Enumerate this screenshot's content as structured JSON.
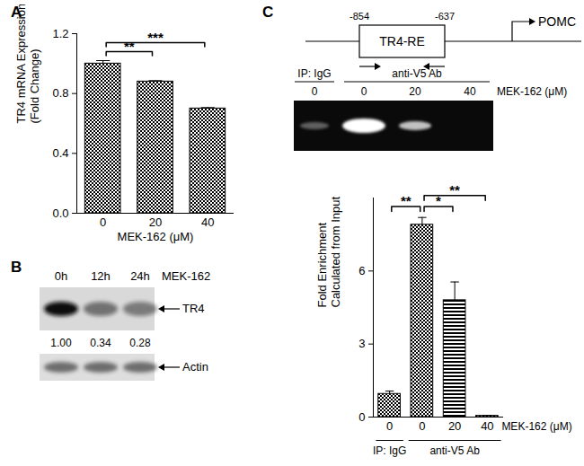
{
  "panel_labels": [
    "A",
    "B",
    "C"
  ],
  "chart_data": [
    {
      "type": "bar",
      "categories": [
        "0",
        "20",
        "40"
      ],
      "values": [
        1.0,
        0.88,
        0.7
      ],
      "errors": [
        0.02,
        0.006,
        0.006
      ],
      "color": "#000000",
      "ylabel": [
        "TR4 mRNA Expression",
        "(Fold Change)"
      ],
      "xlabel": "MEK-162 (μM)",
      "ylim": [
        0,
        1.2
      ],
      "yticks": [
        {
          "value": 0,
          "label": "0.0"
        },
        {
          "value": 0.4,
          "label": "0.4"
        },
        {
          "value": 0.8,
          "label": "0.8"
        },
        {
          "value": 1.2,
          "label": "1.2"
        }
      ],
      "significance": [
        {
          "between": [
            0,
            1
          ],
          "label": "**"
        },
        {
          "between": [
            0,
            2
          ],
          "label": "***"
        }
      ]
    },
    {
      "type": "bar",
      "categories": [
        "0",
        "0",
        "20",
        "40"
      ],
      "values": [
        0.95,
        7.9,
        4.8,
        0.05
      ],
      "errors": [
        0.12,
        0.3,
        0.75,
        0.02
      ],
      "color": "#000000",
      "ylabel": [
        "Fold Enrichment",
        "Calculated from Input"
      ],
      "xlabel": "MEK-162 (μM)",
      "groups": [
        {
          "label": "IP: IgG",
          "size": 1
        },
        {
          "label": "anti-V5 Ab",
          "size": 3
        }
      ],
      "ylim": [
        0,
        9
      ],
      "yticks": [
        0,
        3,
        6
      ],
      "significance": [
        {
          "between": [
            0,
            1
          ],
          "label": "**"
        },
        {
          "between": [
            1,
            2
          ],
          "label": "*"
        },
        {
          "between": [
            1,
            3
          ],
          "label": "**"
        }
      ]
    }
  ],
  "blot": {
    "time_points": [
      "0h",
      "12h",
      "24h"
    ],
    "treatment": "MEK-162",
    "bands": [
      "TR4",
      "Actin"
    ],
    "values": [
      1.0,
      0.34,
      0.28
    ],
    "value_labels": [
      "1.00",
      "0.34",
      "0.28"
    ]
  },
  "diagram": {
    "element": "TR4-RE",
    "start": -854,
    "end": -637,
    "gene": "POMC"
  },
  "gel": {
    "groups": [
      {
        "label": "IP: IgG",
        "size": 1
      },
      {
        "label": "anti-V5 Ab",
        "size": 3
      }
    ],
    "doses": [
      "0",
      "0",
      "20",
      "40"
    ],
    "dose_label": "MEK-162 (μM)"
  }
}
